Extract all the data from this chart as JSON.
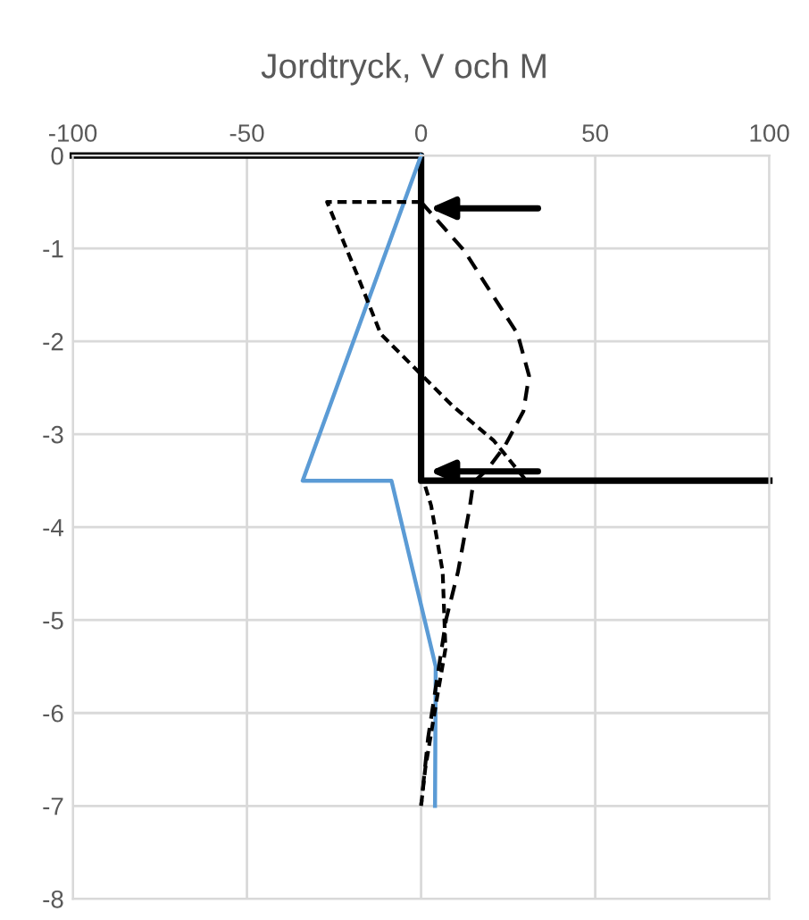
{
  "chart_data": {
    "type": "line",
    "title": "Jordtryck, V och M",
    "grid": true,
    "legend": false,
    "xlim": [
      -100,
      100
    ],
    "xticks": [
      -100,
      -50,
      0,
      50,
      100
    ],
    "ylim": [
      -8,
      0
    ],
    "yticks": [
      0,
      -1,
      -2,
      -3,
      -4,
      -5,
      -6,
      -7,
      -8
    ],
    "series": [
      {
        "color": "#000000",
        "line_style": "solid",
        "x": [
          -100,
          0,
          0,
          100
        ],
        "values": [
          0,
          0,
          -3.5,
          -3.5
        ]
      },
      {
        "color": "#5b9bd5",
        "line_style": "solid",
        "x": [
          0,
          -34,
          -8.5,
          4.2,
          4
        ],
        "values": [
          0,
          -3.5,
          -3.5,
          -5.5,
          -7
        ]
      },
      {
        "color": "#000000",
        "line_style": "dashed",
        "x": [
          0,
          12.3,
          27.7,
          31,
          29.4,
          24,
          19,
          15,
          14,
          10.6,
          7.2,
          4.6,
          2,
          0
        ],
        "values": [
          -0.5,
          -1.02,
          -1.92,
          -2.37,
          -2.75,
          -3.13,
          -3.38,
          -3.52,
          -3.78,
          -4.48,
          -4.99,
          -5.63,
          -6.27,
          -7
        ]
      },
      {
        "color": "#000000",
        "line_style": "dotted",
        "x": [
          0,
          -27,
          -18.5,
          -11.6,
          -1.5,
          8.9,
          20.9,
          30,
          0.7,
          2.9,
          6.2,
          7,
          4.6,
          1.2,
          0
        ],
        "values": [
          -0.5,
          -0.5,
          -1.27,
          -1.92,
          -2.3,
          -2.69,
          -3.07,
          -3.49,
          -3.5,
          -3.77,
          -4.48,
          -5.31,
          -5.83,
          -6.6,
          -7
        ]
      }
    ]
  }
}
